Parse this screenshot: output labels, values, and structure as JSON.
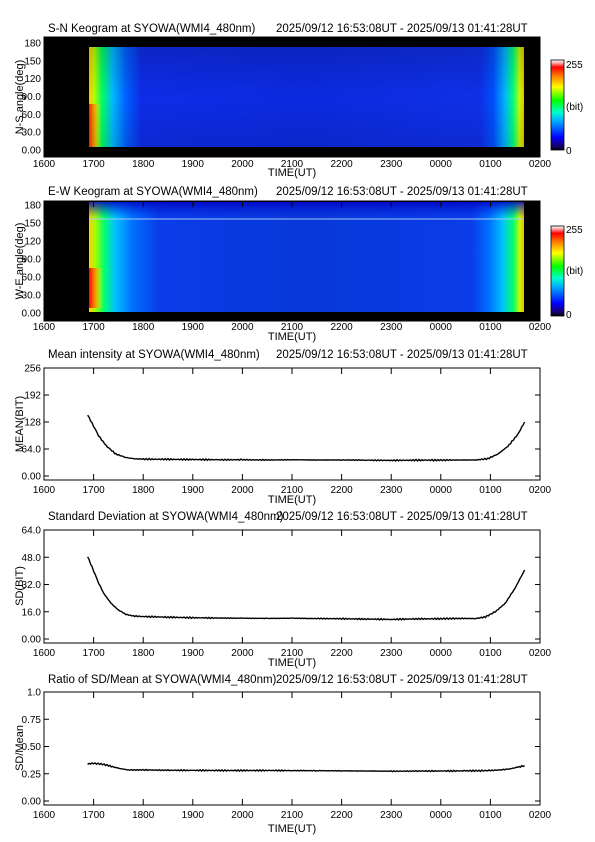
{
  "header": {
    "station": "SYOWA",
    "time_range": "2025/09/12 16:53:08UT - 2025/09/13 01:41:28UT"
  },
  "chart_data": [
    {
      "id": "sn",
      "type": "heatmap",
      "title": "S-N Keogram at SYOWA(WMI4_480nm)",
      "time_range": "2025/09/12 16:53:08UT - 2025/09/13 01:41:28UT",
      "xlabel": "TIME(UT)",
      "ylabel": "N-S angle(deg)",
      "x_ticks": [
        "1600",
        "1700",
        "1800",
        "1900",
        "2000",
        "2100",
        "2200",
        "2300",
        "0000",
        "0100",
        "0200"
      ],
      "y_ticks": [
        "0.00",
        "30.0",
        "60.0",
        "90.0",
        "120",
        "150",
        "180"
      ],
      "ylim": [
        0,
        180
      ],
      "colorbar": {
        "label": "(bit)",
        "min": "0",
        "max": "255"
      },
      "data_span": [
        "16:53",
        "01:41"
      ],
      "description_values": {
        "edge_intensity": "high",
        "middle_intensity": "low"
      }
    },
    {
      "id": "ew",
      "type": "heatmap",
      "title": "E-W Keogram at SYOWA(WMI4_480nm)",
      "time_range": "2025/09/12 16:53:08UT - 2025/09/13 01:41:28UT",
      "xlabel": "TIME(UT)",
      "ylabel": "W-E angle(deg)",
      "x_ticks": [
        "1600",
        "1700",
        "1800",
        "1900",
        "2000",
        "2100",
        "2200",
        "2300",
        "0000",
        "0100",
        "0200"
      ],
      "y_ticks": [
        "0.00",
        "30.0",
        "60.0",
        "90.0",
        "120",
        "150",
        "180"
      ],
      "ylim": [
        0,
        180
      ],
      "colorbar": {
        "label": "(bit)",
        "min": "0",
        "max": "255"
      },
      "data_span": [
        "16:53",
        "01:41"
      ]
    },
    {
      "id": "mean",
      "type": "line",
      "title": "Mean intensity at SYOWA(WMI4_480nm)",
      "time_range": "2025/09/12 16:53:08UT - 2025/09/13 01:41:28UT",
      "xlabel": "TIME(UT)",
      "ylabel": "MEAN(BIT)",
      "x_ticks": [
        "1600",
        "1700",
        "1800",
        "1900",
        "2000",
        "2100",
        "2200",
        "2300",
        "0000",
        "0100",
        "0200"
      ],
      "y_ticks": [
        "0.00",
        "64.0",
        "128",
        "192",
        "256"
      ],
      "ylim": [
        0,
        256
      ],
      "xlim_hours": [
        16,
        26
      ],
      "points": [
        [
          16.88,
          145
        ],
        [
          17.0,
          118
        ],
        [
          17.1,
          96
        ],
        [
          17.25,
          72
        ],
        [
          17.45,
          52
        ],
        [
          17.65,
          44
        ],
        [
          17.8,
          41
        ],
        [
          18.0,
          40
        ],
        [
          18.5,
          39.5
        ],
        [
          19.0,
          39
        ],
        [
          19.5,
          38.5
        ],
        [
          20.0,
          38.5
        ],
        [
          20.5,
          38
        ],
        [
          21.0,
          38.5
        ],
        [
          21.5,
          38
        ],
        [
          22.0,
          38
        ],
        [
          22.5,
          37.5
        ],
        [
          23.0,
          37
        ],
        [
          23.5,
          37.5
        ],
        [
          24.0,
          37.5
        ],
        [
          24.4,
          38
        ],
        [
          24.7,
          38
        ],
        [
          24.95,
          41
        ],
        [
          25.15,
          52
        ],
        [
          25.35,
          70
        ],
        [
          25.55,
          98
        ],
        [
          25.69,
          128
        ]
      ]
    },
    {
      "id": "sd",
      "type": "line",
      "title": "Standard Deviation at SYOWA(WMI4_480nm)",
      "time_range": "2025/09/12 16:53:08UT - 2025/09/13 01:41:28UT",
      "xlabel": "TIME(UT)",
      "ylabel": "SD(BIT)",
      "x_ticks": [
        "1600",
        "1700",
        "1800",
        "1900",
        "2000",
        "2100",
        "2200",
        "2300",
        "0000",
        "0100",
        "0200"
      ],
      "y_ticks": [
        "0.00",
        "16.0",
        "32.0",
        "48.0",
        "64.0"
      ],
      "ylim": [
        0,
        64
      ],
      "xlim_hours": [
        16,
        26
      ],
      "points": [
        [
          16.88,
          48.5
        ],
        [
          17.0,
          40
        ],
        [
          17.1,
          33
        ],
        [
          17.2,
          27
        ],
        [
          17.35,
          21
        ],
        [
          17.5,
          17
        ],
        [
          17.65,
          14.5
        ],
        [
          17.8,
          13.5
        ],
        [
          18.0,
          13.2
        ],
        [
          18.5,
          12.8
        ],
        [
          19.0,
          12.5
        ],
        [
          19.5,
          12.3
        ],
        [
          20.0,
          12.2
        ],
        [
          20.5,
          12.1
        ],
        [
          21.0,
          12.2
        ],
        [
          21.5,
          12.0
        ],
        [
          22.0,
          11.9
        ],
        [
          22.5,
          11.7
        ],
        [
          23.0,
          11.5
        ],
        [
          23.5,
          11.8
        ],
        [
          24.0,
          11.9
        ],
        [
          24.4,
          12.1
        ],
        [
          24.7,
          12.0
        ],
        [
          24.9,
          13
        ],
        [
          25.1,
          16
        ],
        [
          25.3,
          21
        ],
        [
          25.5,
          30
        ],
        [
          25.69,
          40.5
        ]
      ]
    },
    {
      "id": "ratio",
      "type": "line",
      "title": "Ratio of SD/Mean at SYOWA(WMI4_480nm)",
      "time_range": "2025/09/12 16:53:08UT - 2025/09/13 01:41:28UT",
      "xlabel": "TIME(UT)",
      "ylabel": "SD/Mean",
      "x_ticks": [
        "1600",
        "1700",
        "1800",
        "1900",
        "2000",
        "2100",
        "2200",
        "2300",
        "0000",
        "0100",
        "0200"
      ],
      "y_ticks": [
        "0.00",
        "0.25",
        "0.50",
        "0.75",
        "1.0"
      ],
      "ylim": [
        0,
        1
      ],
      "xlim_hours": [
        16,
        26
      ],
      "points": [
        [
          16.88,
          0.34
        ],
        [
          17.0,
          0.345
        ],
        [
          17.15,
          0.34
        ],
        [
          17.3,
          0.325
        ],
        [
          17.5,
          0.3
        ],
        [
          17.7,
          0.285
        ],
        [
          18.0,
          0.285
        ],
        [
          18.5,
          0.282
        ],
        [
          19.0,
          0.281
        ],
        [
          19.5,
          0.28
        ],
        [
          20.0,
          0.28
        ],
        [
          20.5,
          0.28
        ],
        [
          21.0,
          0.279
        ],
        [
          21.5,
          0.278
        ],
        [
          22.0,
          0.277
        ],
        [
          22.5,
          0.275
        ],
        [
          23.0,
          0.273
        ],
        [
          23.5,
          0.274
        ],
        [
          24.0,
          0.275
        ],
        [
          24.5,
          0.277
        ],
        [
          24.8,
          0.278
        ],
        [
          25.0,
          0.28
        ],
        [
          25.2,
          0.285
        ],
        [
          25.4,
          0.295
        ],
        [
          25.55,
          0.31
        ],
        [
          25.69,
          0.325
        ]
      ]
    }
  ]
}
